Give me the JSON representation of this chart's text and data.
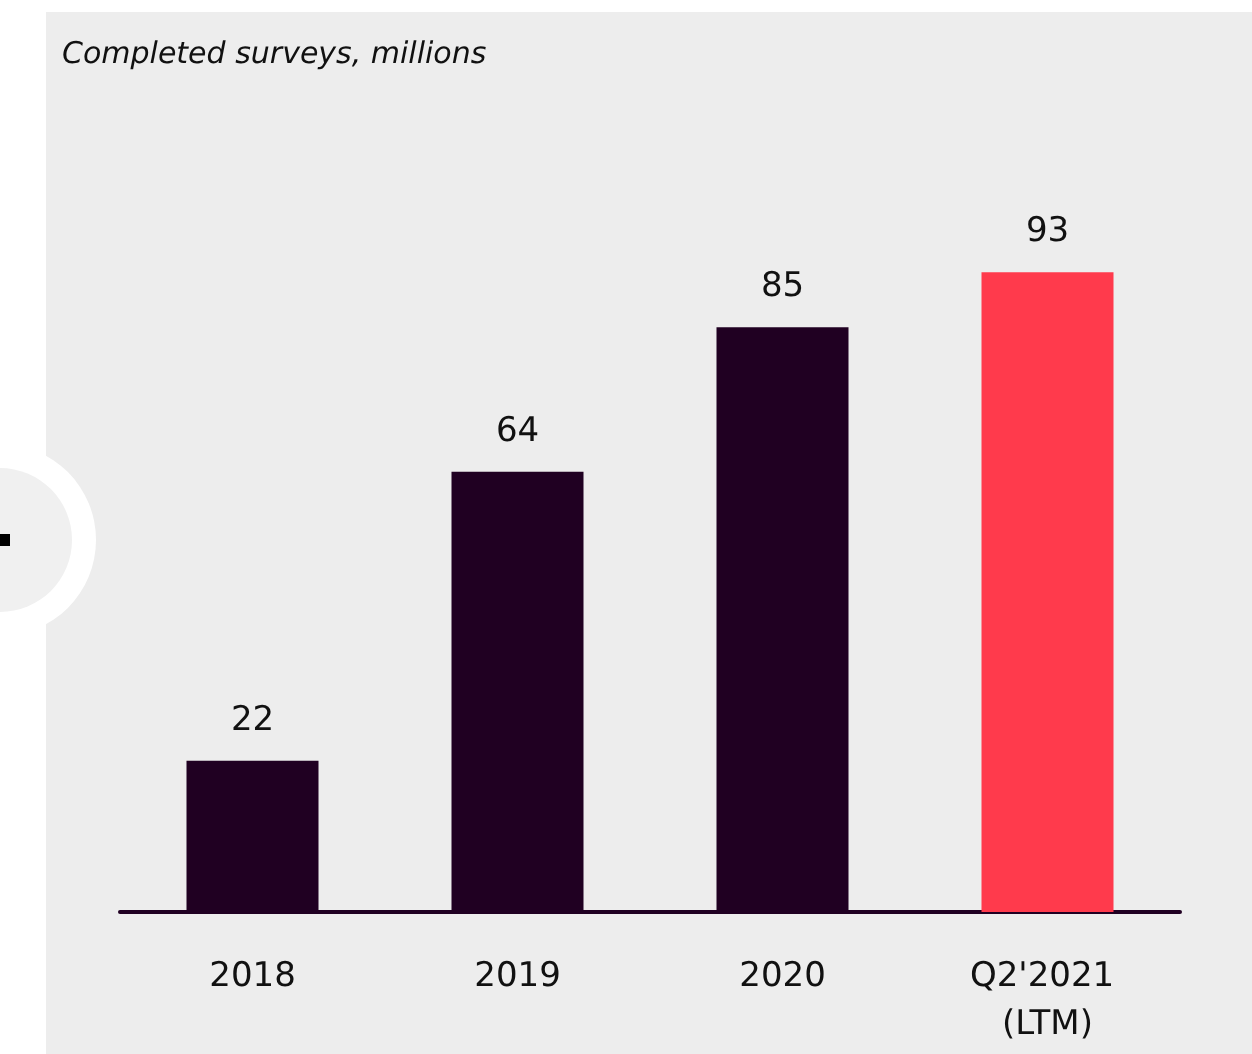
{
  "chart_data": {
    "type": "bar",
    "title": "Completed surveys, millions",
    "categories": [
      "2018",
      "2019",
      "2020",
      "Q2'2021 (LTM)"
    ],
    "values": [
      22,
      64,
      85,
      93
    ],
    "colors": [
      "#200022",
      "#200022",
      "#200022",
      "#ff3a4c"
    ],
    "data_labels": true
  }
}
